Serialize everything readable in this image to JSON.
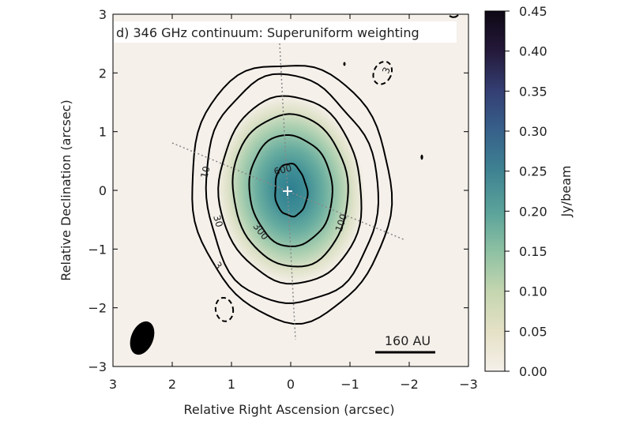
{
  "chart_data": {
    "type": "heatmap",
    "title": "d) 346 GHz continuum: Superuniform weighting",
    "xlabel": "Relative Right Ascension (arcsec)",
    "ylabel": "Relative Declination (arcsec)",
    "xlim": [
      3,
      -3
    ],
    "ylim": [
      -3,
      3
    ],
    "x_ticks": [
      3,
      2,
      1,
      0,
      -1,
      -2,
      -3
    ],
    "y_ticks": [
      -3,
      -2,
      -1,
      0,
      1,
      2,
      3
    ],
    "x_tick_labels": [
      "3",
      "2",
      "1",
      "0",
      "−1",
      "−2",
      "−3"
    ],
    "y_tick_labels": [
      "−3",
      "−2",
      "−1",
      "0",
      "1",
      "2",
      "3"
    ],
    "colorbar": {
      "label": "Jy/beam",
      "range": [
        0.0,
        0.45
      ],
      "ticks": [
        0.0,
        0.05,
        0.1,
        0.15,
        0.2,
        0.25,
        0.3,
        0.35,
        0.4,
        0.45
      ],
      "tick_labels": [
        "0.00",
        "0.05",
        "0.10",
        "0.15",
        "0.20",
        "0.25",
        "0.30",
        "0.35",
        "0.40",
        "0.45"
      ],
      "colors": [
        "#f5f0ea",
        "#e5e1c6",
        "#c5d6b0",
        "#8fc1a3",
        "#5ba39a",
        "#3e8292",
        "#37608a",
        "#343e72",
        "#24193a",
        "#0e0814"
      ]
    },
    "emission": {
      "peak_jy_per_beam": 0.33,
      "center": [
        0,
        0
      ]
    },
    "contours": [
      {
        "level": "600",
        "rx": 0.27,
        "ry": 0.45
      },
      {
        "level": "300",
        "rx": 0.7,
        "ry": 0.95
      },
      {
        "level": "100",
        "rx": 0.97,
        "ry": 1.3
      },
      {
        "level": "30",
        "rx": 1.2,
        "ry": 1.6
      },
      {
        "level": "10",
        "rx": 1.45,
        "ry": 1.95
      },
      {
        "level": "3",
        "rx": 1.68,
        "ry": 2.2
      }
    ],
    "negative_contours": [
      {
        "level": "3",
        "x": -1.55,
        "y": 2.0
      },
      {
        "level": "",
        "x": 1.12,
        "y": -2.03
      }
    ],
    "center_marker": [
      0,
      0
    ],
    "axis_lines": {
      "pa_minor_deg": 118,
      "pa_major_deg": 28
    },
    "beam": {
      "x": 2.55,
      "y": -2.55
    },
    "scale_bar": {
      "label": "160 AU",
      "x_from": -1.5,
      "x_to": -2.5,
      "y": -2.7
    }
  }
}
